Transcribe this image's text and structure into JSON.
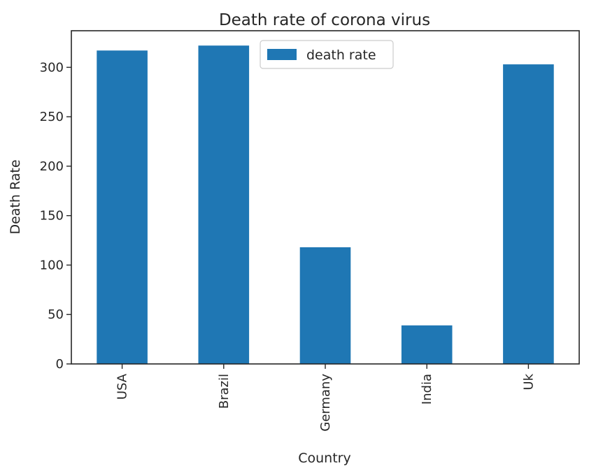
{
  "chart_data": {
    "type": "bar",
    "title": "Death rate of corona virus",
    "xlabel": "Country",
    "ylabel": "Death Rate",
    "categories": [
      "USA",
      "Brazil",
      "Germany",
      "India",
      "Uk"
    ],
    "series": [
      {
        "name": "death rate",
        "values": [
          317,
          322,
          118,
          39,
          303
        ],
        "color": "#1f77b4"
      }
    ],
    "ylim": [
      0,
      337
    ],
    "yticks": [
      0,
      50,
      100,
      150,
      200,
      250,
      300
    ],
    "grid": false,
    "legend_position": "top-center"
  }
}
